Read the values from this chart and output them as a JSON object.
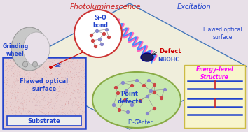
{
  "bg_color": "#e8e0e8",
  "title": "Photoluminescence",
  "title_color": "#cc2222",
  "title_style": "italic",
  "excitation_text": "Excitation",
  "excitation_color": "#2244cc",
  "flawed_surface_right_text": "Flawed optical\nsurface",
  "flawed_surface_right_color": "#2244cc",
  "grinding_text": "Grinding\nwheel",
  "grinding_color": "#2244cc",
  "nbohc_text": "NBOHC",
  "nbohc_color": "#2244cc",
  "defect_text": "Defect",
  "defect_color": "#cc0000",
  "point_defects_text": "Point\ndefects",
  "point_defects_color": "#2244cc",
  "ecenter_text": "E’-Center",
  "ecenter_color": "#2244cc",
  "energy_title": "Energy-level\nStructure",
  "energy_title_color": "#ff00ff",
  "sio_bond_text": "Si-O\nbond",
  "sio_bond_color": "#2244cc",
  "substrate_text": "Substrate",
  "substrate_color": "#2244cc",
  "flawed_left_text": "Flawed optical\nsurface",
  "flawed_left_color": "#2244cc",
  "diamond_border_color": "#4477bb",
  "energy_bg": "#f8f5cc",
  "level_color": "#2244cc",
  "transition_color": "#cc2222",
  "surface_fill": "#e8d0d0",
  "surface_border": "#2244cc",
  "ellipse_bg": "#c8e8b0",
  "ellipse_border": "#88aa44",
  "sio_circle_bg": "#ffffff",
  "sio_circle_border": "#cc3333",
  "wheel_color": "#c0c0c0",
  "wave_pink": "#ff66bb",
  "wave_blue": "#4488ff",
  "wave_red": "#ff3333"
}
